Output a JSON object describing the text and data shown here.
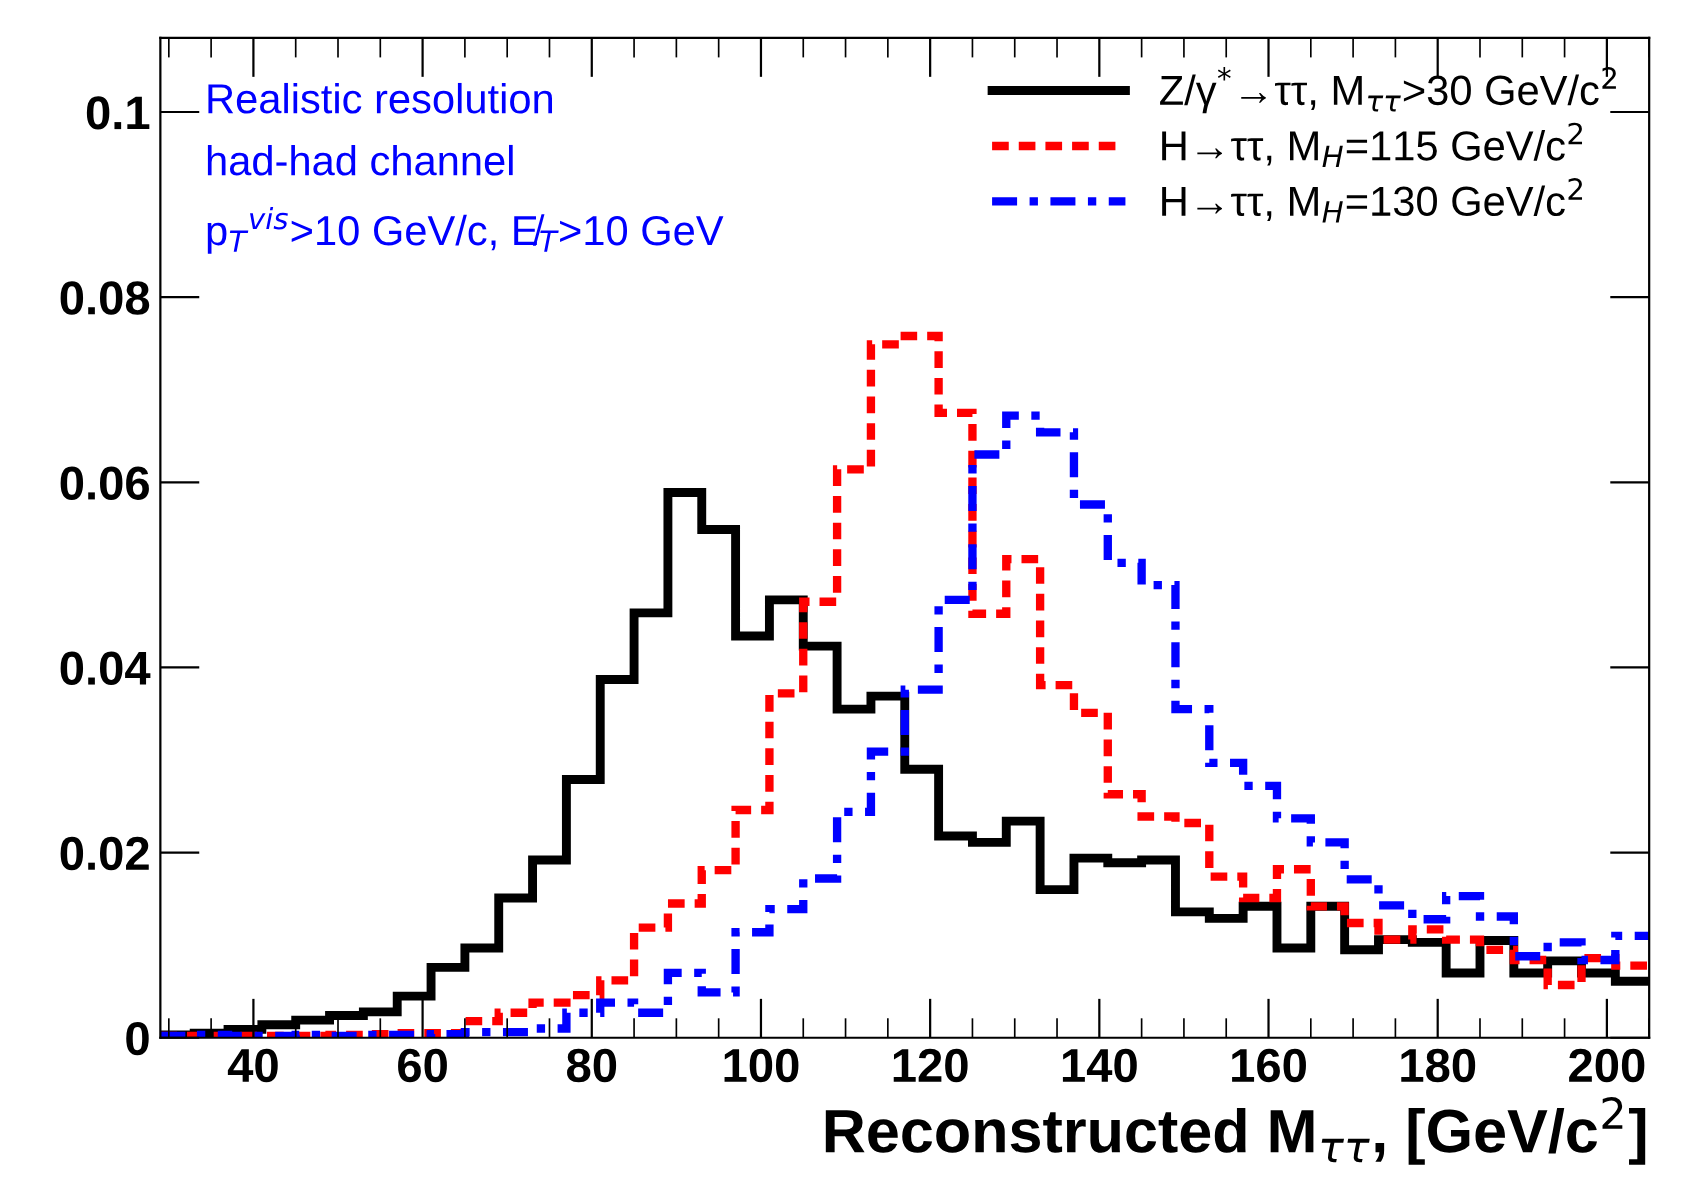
{
  "chart_data": {
    "type": "histogram",
    "xlabel": "Reconstructed M$_{ττ}$, [GeV/c$^{2}$]",
    "bins": [
      29,
      33,
      37,
      41,
      45,
      49,
      53,
      57,
      61,
      65,
      69,
      73,
      77,
      81,
      85,
      89,
      93,
      97,
      101,
      105,
      109,
      113,
      117,
      121,
      125,
      129,
      133,
      137,
      141,
      145,
      149,
      153,
      157,
      161,
      165,
      169,
      173,
      177,
      181,
      185,
      189,
      193,
      197,
      201,
      205
    ],
    "series": [
      {
        "name": "Z/γ$^{*}$→ττ, M$_{ττ}$>30 GeV/c$^{2}$",
        "color": "#000000",
        "line_style": "solid",
        "values": [
          0.0003,
          0.0005,
          0.0009,
          0.0014,
          0.0019,
          0.0024,
          0.0028,
          0.0045,
          0.0076,
          0.0097,
          0.0151,
          0.0192,
          0.0279,
          0.0387,
          0.0459,
          0.0589,
          0.0549,
          0.0434,
          0.0473,
          0.0423,
          0.0355,
          0.0369,
          0.029,
          0.0218,
          0.0211,
          0.0234,
          0.016,
          0.0194,
          0.0189,
          0.0192,
          0.0136,
          0.0129,
          0.0142,
          0.0097,
          0.0142,
          0.0095,
          0.0106,
          0.0103,
          0.007,
          0.0105,
          0.007,
          0.0083,
          0.007,
          0.0061
        ]
      },
      {
        "name": "H→ττ, M$_{H}$=115 GeV/c$^{2}$",
        "color": "#ff0000",
        "line_style": "dashed",
        "values": [
          0.0002,
          0.0002,
          0.0002,
          0.0002,
          0.0002,
          0.0003,
          0.0004,
          0.0005,
          0.0005,
          0.0018,
          0.0027,
          0.0038,
          0.0046,
          0.0062,
          0.0119,
          0.0145,
          0.0181,
          0.0246,
          0.0372,
          0.0471,
          0.0614,
          0.0749,
          0.0758,
          0.0675,
          0.0458,
          0.0517,
          0.0381,
          0.0351,
          0.0263,
          0.0239,
          0.0232,
          0.0174,
          0.0151,
          0.0182,
          0.0142,
          0.0124,
          0.0106,
          0.0117,
          0.0106,
          0.0095,
          0.0084,
          0.0057,
          0.0086,
          0.0078
        ]
      },
      {
        "name": "H→ττ, M$_{H}$=130 GeV/c$^{2}$",
        "color": "#0000ff",
        "line_style": "dashdot",
        "values": [
          0.0002,
          0.0003,
          0.0002,
          0.0002,
          0.0003,
          0.0002,
          0.0003,
          0.0003,
          0.0004,
          0.0006,
          0.0006,
          0.001,
          0.0027,
          0.0038,
          0.0027,
          0.007,
          0.0049,
          0.0114,
          0.0139,
          0.0172,
          0.0244,
          0.0309,
          0.0376,
          0.0473,
          0.063,
          0.0672,
          0.0654,
          0.0576,
          0.0513,
          0.0489,
          0.0355,
          0.0297,
          0.0272,
          0.0237,
          0.0211,
          0.0171,
          0.0143,
          0.0128,
          0.0153,
          0.0131,
          0.0088,
          0.0103,
          0.0084,
          0.011
        ]
      }
    ],
    "annotations": [
      "Realistic resolution",
      "had-had channel",
      "p$_{T}$$^{vis}$>10 GeV/c, E̸$_{T}$>10 GeV"
    ],
    "xlim": [
      29,
      205
    ],
    "xticks": [
      40,
      60,
      80,
      100,
      120,
      140,
      160,
      180,
      200
    ],
    "ylim": [
      0,
      0.108
    ],
    "yticks": [
      0,
      0.02,
      0.04,
      0.06,
      0.08,
      0.1
    ],
    "legend": "top right",
    "grid": false
  }
}
